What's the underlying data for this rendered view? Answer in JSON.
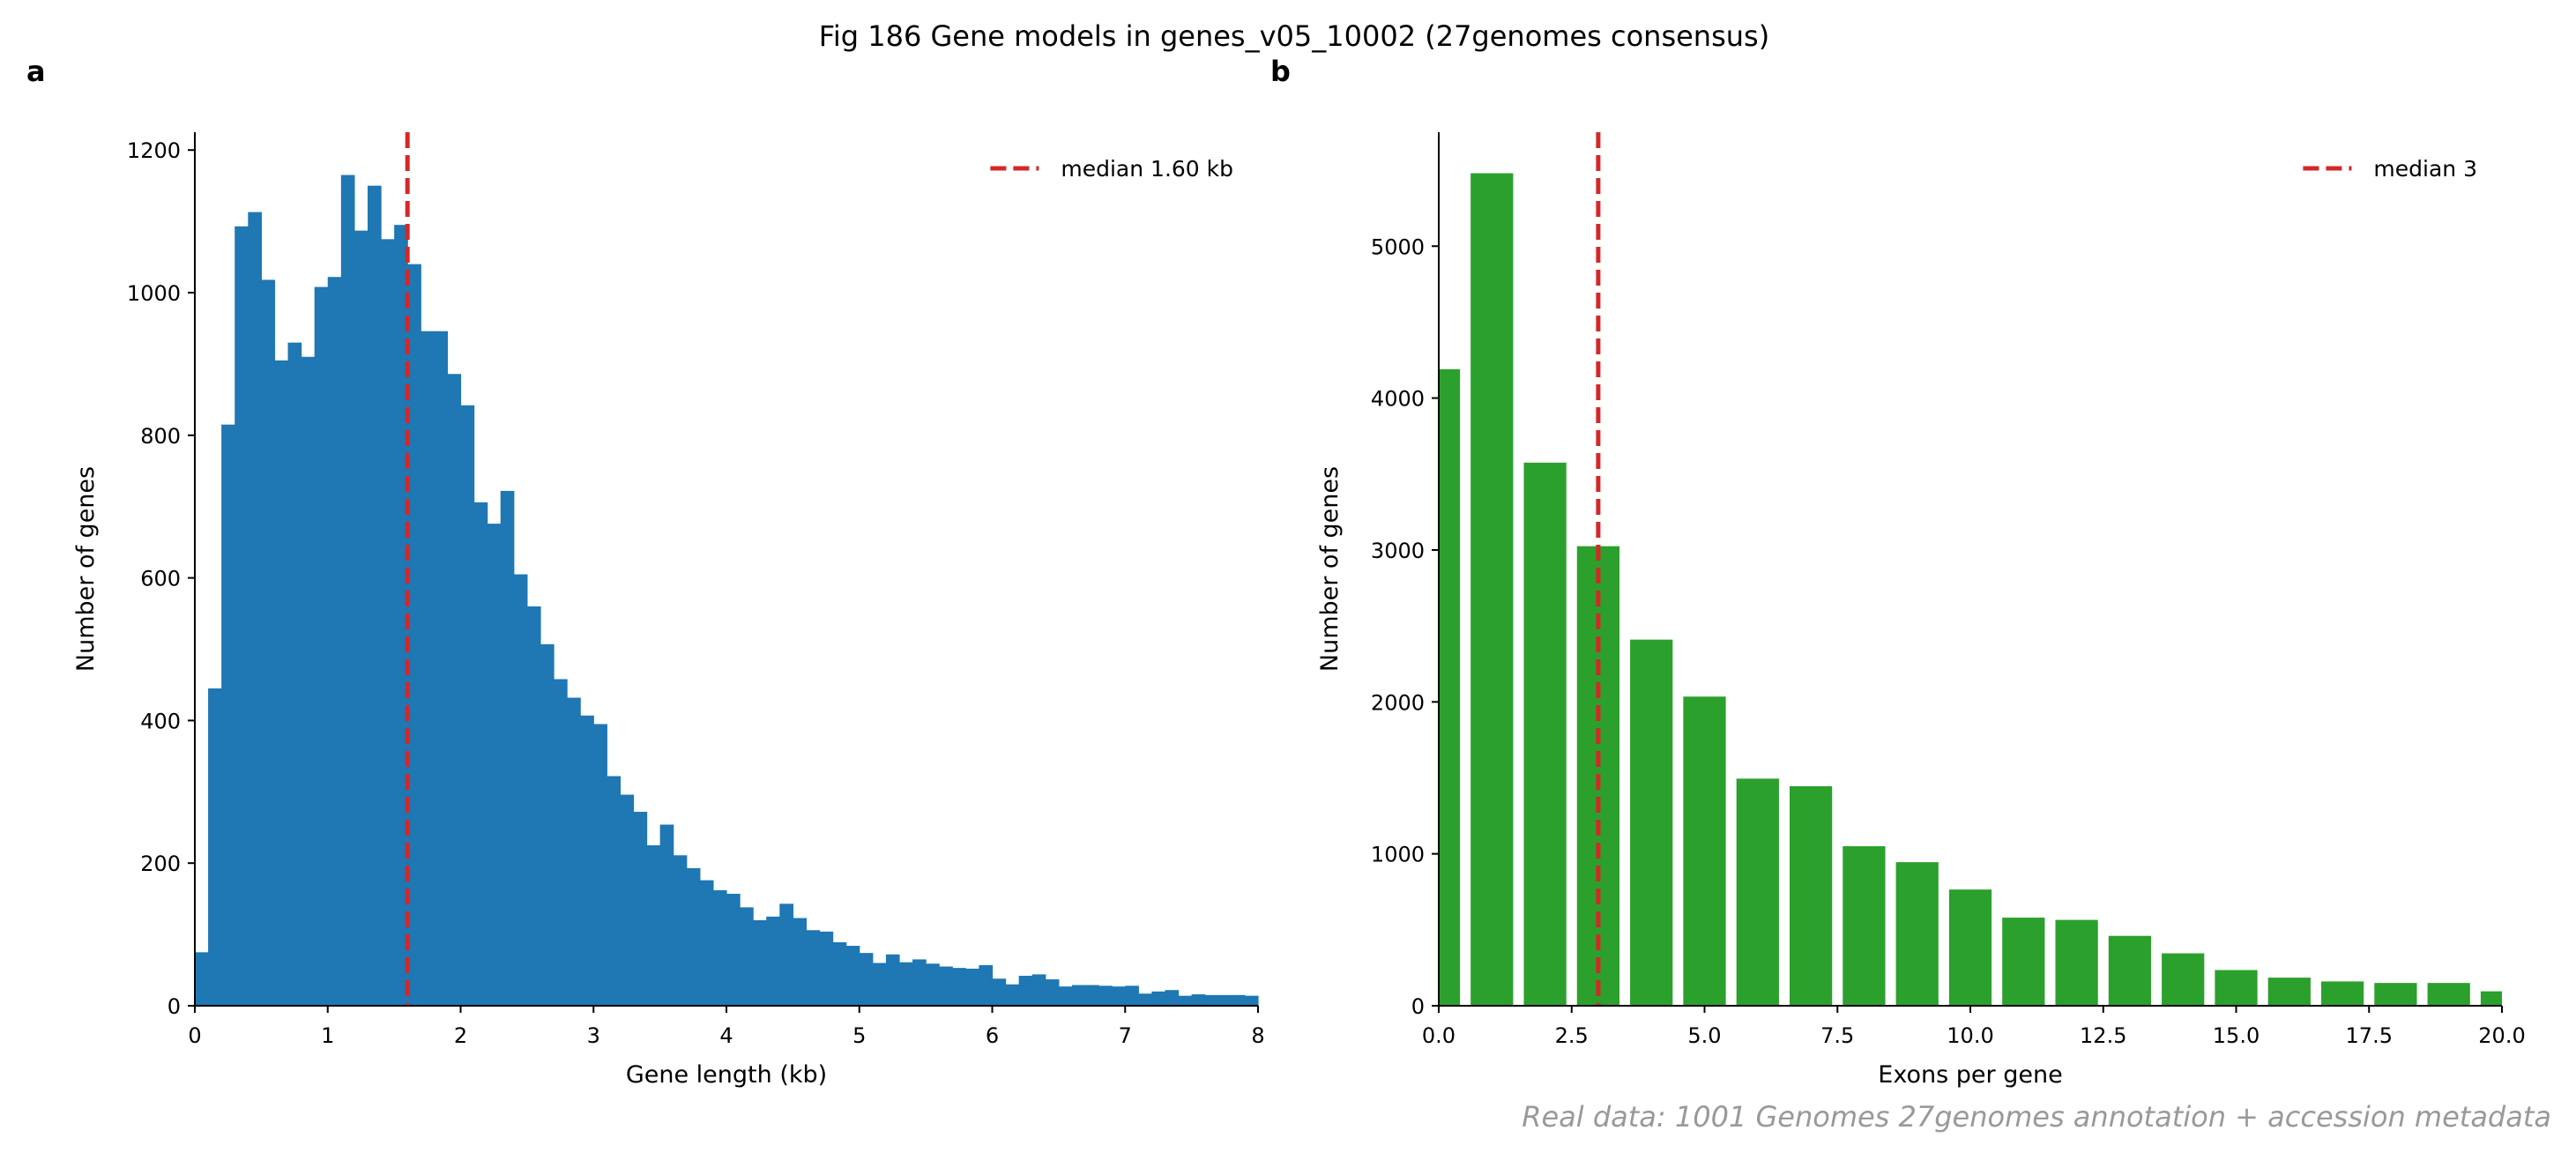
{
  "figure": {
    "title": "Fig 186  Gene models in genes_v05_10002 (27genomes consensus)",
    "footnote": "Real data: 1001 Genomes 27genomes annotation + accession metadata"
  },
  "colors": {
    "hist": "#1f77b4",
    "bars": "#2ca02c",
    "median": "#d62728",
    "footnote": "#999999",
    "axis": "#000000"
  },
  "chart_data": [
    {
      "panel_label": "a",
      "type": "bar",
      "xlabel": "Gene length (kb)",
      "ylabel": "Number of genes",
      "xlim": [
        0,
        8
      ],
      "ylim": [
        0,
        1225
      ],
      "xticks": [
        0,
        1,
        2,
        3,
        4,
        5,
        6,
        7,
        8
      ],
      "xtick_labels": [
        "0",
        "1",
        "2",
        "3",
        "4",
        "5",
        "6",
        "7",
        "8"
      ],
      "yticks": [
        0,
        200,
        400,
        600,
        800,
        1000,
        1200
      ],
      "ytick_labels": [
        "0",
        "200",
        "400",
        "600",
        "800",
        "1000",
        "1200"
      ],
      "grid": false,
      "bin_width": 0.1,
      "bin_start": 0,
      "values": [
        75,
        445,
        815,
        1093,
        1113,
        1018,
        905,
        930,
        910,
        1008,
        1022,
        1165,
        1087,
        1150,
        1075,
        1095,
        1040,
        946,
        946,
        886,
        842,
        706,
        676,
        722,
        605,
        560,
        507,
        458,
        432,
        407,
        395,
        322,
        296,
        272,
        225,
        254,
        211,
        193,
        176,
        162,
        157,
        138,
        120,
        125,
        143,
        123,
        106,
        104,
        89,
        84,
        74,
        60,
        72,
        61,
        65,
        59,
        55,
        53,
        52,
        57,
        38,
        30,
        42,
        44,
        37,
        27,
        29,
        29,
        28,
        27,
        28,
        17,
        20,
        22,
        14,
        16,
        15,
        15,
        15,
        14
      ],
      "median_value": 1.6,
      "legend": {
        "label": "median 1.60 kb",
        "position": "upper right"
      }
    },
    {
      "panel_label": "b",
      "type": "bar",
      "xlabel": "Exons per gene",
      "ylabel": "Number of genes",
      "xlim": [
        0,
        20
      ],
      "ylim": [
        0,
        5750
      ],
      "xticks": [
        0,
        2.5,
        5,
        7.5,
        10,
        12.5,
        15,
        17.5,
        20
      ],
      "xtick_labels": [
        "0.0",
        "2.5",
        "5.0",
        "7.5",
        "10.0",
        "12.5",
        "15.0",
        "17.5",
        "20.0"
      ],
      "yticks": [
        0,
        1000,
        2000,
        3000,
        4000,
        5000
      ],
      "ytick_labels": [
        "0",
        "1000",
        "2000",
        "3000",
        "4000",
        "5000"
      ],
      "grid": false,
      "bar_width": 0.8,
      "categories": [
        0,
        1,
        2,
        3,
        4,
        5,
        6,
        7,
        8,
        9,
        10,
        11,
        12,
        13,
        14,
        15,
        16,
        17,
        18,
        19,
        20
      ],
      "values": [
        4190,
        5480,
        3575,
        3025,
        2410,
        2035,
        1495,
        1445,
        1050,
        945,
        765,
        580,
        565,
        460,
        345,
        235,
        185,
        160,
        150,
        150,
        95
      ],
      "median_value": 3,
      "legend": {
        "label": "median 3",
        "position": "upper right"
      }
    }
  ]
}
